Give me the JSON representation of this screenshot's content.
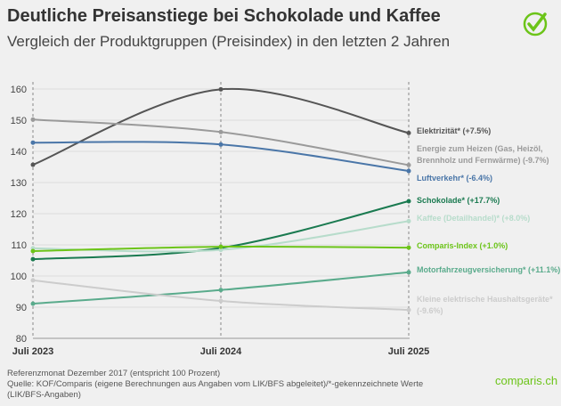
{
  "title": "Deutliche Preisanstiege bei Schokolade und Kaffee",
  "subtitle": "Vergleich der Produktgruppen (Preisindex) in den letzten 2 Jahren",
  "notes": [
    "Referenzmonat Dezember 2017 (entspricht 100 Prozent)",
    "Quelle: KOF/Comparis (eigene Berechnungen aus Angaben vom LIK/BFS abgeleitet)/*-gekennzeichnete Werte (LIK/BFS-Angaben)"
  ],
  "brand": "comparis.ch",
  "brand_color": "#6cc419",
  "chart_data": {
    "type": "line",
    "x": [
      "Juli 2023",
      "Juli 2024",
      "Juli 2025"
    ],
    "ylim": [
      80,
      160
    ],
    "yticks": [
      80,
      90,
      100,
      110,
      120,
      130,
      140,
      150,
      160
    ],
    "grid": true,
    "legend": "right (direct labels)",
    "series": [
      {
        "name": "Elektrizität* (+7.5%)",
        "color": "#555555",
        "values": [
          135.7,
          159.9,
          145.9
        ]
      },
      {
        "name": "Energie zum Heizen (Gas, Heizöl, Brennholz und Fernwärme) (-9.7%)",
        "label_lines": [
          "Energie zum Heizen (Gas, Heizöl,",
          "Brennholz und Fernwärme) (-9.7%)"
        ],
        "color": "#9a9a9a",
        "values": [
          150.2,
          146.2,
          135.6
        ]
      },
      {
        "name": "Luftverkehr* (-6.4%)",
        "color": "#4a76a8",
        "values": [
          142.8,
          142.2,
          133.7
        ]
      },
      {
        "name": "Schokolade* (+17.7%)",
        "color": "#1a7a50",
        "values": [
          105.4,
          109.0,
          124.0
        ]
      },
      {
        "name": "Kaffee (Detailhandel)* (+8.0%)",
        "color": "#b7dccb",
        "values": [
          108.9,
          108.4,
          117.6
        ]
      },
      {
        "name": "Comparis-Index (+1.0%)",
        "color": "#6cc419",
        "values": [
          108.0,
          109.4,
          109.1
        ]
      },
      {
        "name": "Motorfahrzeugversicherung* (+11.1%)",
        "color": "#5aab8c",
        "values": [
          91.1,
          95.5,
          101.2
        ]
      },
      {
        "name": "Kleine elektrische Haushaltsgeräte* (-9.6%)",
        "label_lines": [
          "Kleine elektrische Haushaltsgeräte*",
          "(-9.6%)"
        ],
        "color": "#cccccc",
        "values": [
          98.6,
          92.0,
          89.1
        ]
      }
    ]
  }
}
